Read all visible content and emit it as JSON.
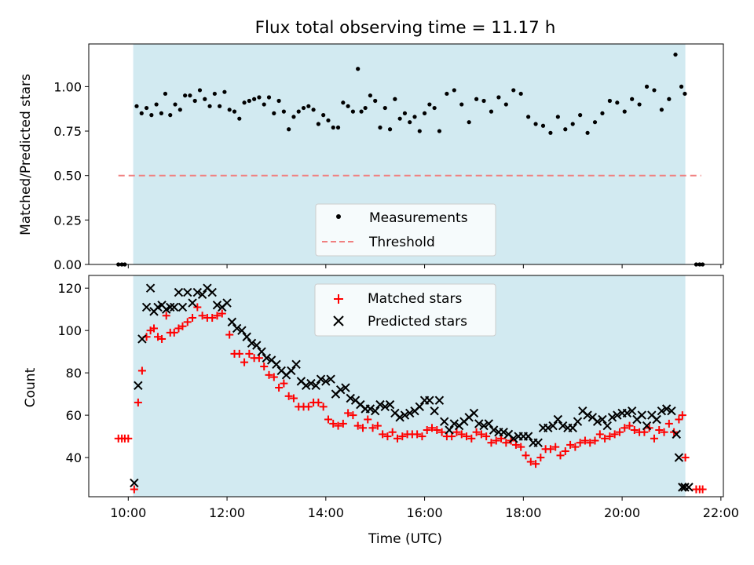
{
  "title": "Flux total observing time = 11.17 h",
  "chart_data": [
    {
      "type": "scatter",
      "ylabel": "Matched/Predicted stars",
      "xlabel": "",
      "ylim": [
        0,
        1.24
      ],
      "yticks": [
        0.0,
        0.25,
        0.5,
        0.75,
        1.0
      ],
      "ytick_labels": [
        "0.00",
        "0.25",
        "0.50",
        "0.75",
        "1.00"
      ],
      "xlim": [
        9.2,
        22.05
      ],
      "observing_span": [
        10.1,
        21.28
      ],
      "observing_span_color": "#add8e6",
      "legend_position": "bottom-center",
      "series": [
        {
          "name": "Measurements",
          "marker": "dot",
          "color": "#000000",
          "x": [
            9.8,
            9.87,
            9.93,
            10.17,
            10.27,
            10.37,
            10.47,
            10.57,
            10.67,
            10.75,
            10.85,
            10.95,
            11.05,
            11.15,
            11.25,
            11.35,
            11.45,
            11.55,
            11.65,
            11.75,
            11.85,
            11.95,
            12.05,
            12.15,
            12.25,
            12.35,
            12.45,
            12.55,
            12.65,
            12.75,
            12.85,
            12.95,
            13.05,
            13.15,
            13.25,
            13.35,
            13.45,
            13.55,
            13.65,
            13.75,
            13.85,
            13.95,
            14.05,
            14.15,
            14.25,
            14.35,
            14.45,
            14.55,
            14.65,
            14.72,
            14.8,
            14.9,
            15.0,
            15.1,
            15.2,
            15.3,
            15.4,
            15.5,
            15.6,
            15.7,
            15.8,
            15.9,
            16.0,
            16.1,
            16.2,
            16.3,
            16.45,
            16.6,
            16.75,
            16.9,
            17.05,
            17.2,
            17.35,
            17.5,
            17.65,
            17.8,
            17.95,
            18.1,
            18.25,
            18.4,
            18.55,
            18.7,
            18.85,
            19.0,
            19.15,
            19.3,
            19.45,
            19.6,
            19.75,
            19.9,
            20.05,
            20.2,
            20.35,
            20.5,
            20.65,
            20.8,
            20.95,
            21.08,
            21.2,
            21.27,
            21.5,
            21.57,
            21.63
          ],
          "y": [
            0.0,
            0.0,
            0.0,
            0.89,
            0.85,
            0.88,
            0.84,
            0.9,
            0.85,
            0.96,
            0.84,
            0.9,
            0.87,
            0.95,
            0.95,
            0.92,
            0.98,
            0.93,
            0.89,
            0.96,
            0.89,
            0.97,
            0.87,
            0.86,
            0.82,
            0.91,
            0.92,
            0.93,
            0.94,
            0.9,
            0.94,
            0.85,
            0.92,
            0.86,
            0.76,
            0.83,
            0.86,
            0.88,
            0.89,
            0.87,
            0.79,
            0.84,
            0.81,
            0.77,
            0.77,
            0.91,
            0.89,
            0.86,
            1.1,
            0.86,
            0.88,
            0.95,
            0.92,
            0.77,
            0.88,
            0.76,
            0.93,
            0.82,
            0.85,
            0.8,
            0.83,
            0.75,
            0.85,
            0.9,
            0.88,
            0.75,
            0.96,
            0.98,
            0.9,
            0.8,
            0.93,
            0.92,
            0.86,
            0.94,
            0.9,
            0.98,
            0.96,
            0.83,
            0.79,
            0.78,
            0.74,
            0.83,
            0.76,
            0.79,
            0.84,
            0.74,
            0.8,
            0.85,
            0.92,
            0.91,
            0.86,
            0.93,
            0.9,
            1.0,
            0.98,
            0.87,
            0.93,
            1.18,
            1.0,
            0.96,
            0.0,
            0.0,
            0.0
          ]
        },
        {
          "name": "Threshold",
          "marker": "dashed-line",
          "color": "#f08080",
          "x": [
            9.8,
            21.6
          ],
          "y": [
            0.5,
            0.5
          ]
        }
      ]
    },
    {
      "type": "scatter",
      "ylabel": "Count",
      "xlabel": "Time (UTC)",
      "ylim": [
        21.5,
        126
      ],
      "yticks": [
        40,
        60,
        80,
        100,
        120
      ],
      "ytick_labels": [
        "40",
        "60",
        "80",
        "100",
        "120"
      ],
      "xlim": [
        9.2,
        22.05
      ],
      "xticks": [
        10,
        12,
        14,
        16,
        18,
        20,
        22
      ],
      "xtick_labels": [
        "10:00",
        "12:00",
        "14:00",
        "16:00",
        "18:00",
        "20:00",
        "22:00"
      ],
      "observing_span": [
        10.1,
        21.28
      ],
      "observing_span_color": "#add8e6",
      "legend_position": "top-center",
      "series": [
        {
          "name": "Matched stars",
          "marker": "plus",
          "color": "#ff0000",
          "x": [
            9.8,
            9.87,
            9.93,
            10.0,
            10.12,
            10.2,
            10.28,
            10.37,
            10.45,
            10.52,
            10.6,
            10.68,
            10.77,
            10.85,
            10.93,
            11.02,
            11.1,
            11.2,
            11.3,
            11.4,
            11.5,
            11.6,
            11.7,
            11.8,
            11.9,
            12.05,
            12.15,
            12.25,
            12.35,
            12.45,
            12.55,
            12.65,
            12.75,
            12.85,
            12.95,
            13.05,
            13.15,
            13.25,
            13.35,
            13.45,
            13.55,
            13.65,
            13.75,
            13.85,
            13.95,
            14.05,
            14.15,
            14.25,
            14.35,
            14.45,
            14.55,
            14.65,
            14.75,
            14.85,
            14.95,
            15.05,
            15.15,
            15.25,
            15.35,
            15.45,
            15.55,
            15.65,
            15.75,
            15.85,
            15.95,
            16.05,
            16.15,
            16.25,
            16.35,
            16.45,
            16.55,
            16.65,
            16.75,
            16.85,
            16.95,
            17.05,
            17.15,
            17.25,
            17.35,
            17.45,
            17.55,
            17.65,
            17.75,
            17.85,
            17.95,
            18.05,
            18.15,
            18.25,
            18.35,
            18.45,
            18.55,
            18.65,
            18.75,
            18.85,
            18.95,
            19.05,
            19.15,
            19.25,
            19.35,
            19.45,
            19.55,
            19.65,
            19.75,
            19.85,
            19.95,
            20.05,
            20.15,
            20.25,
            20.35,
            20.45,
            20.55,
            20.65,
            20.75,
            20.85,
            20.95,
            21.05,
            21.15,
            21.22,
            21.28,
            21.5,
            21.57,
            21.63
          ],
          "y": [
            49,
            49,
            49,
            49,
            25,
            66,
            81,
            97,
            100,
            101,
            97,
            96,
            107,
            99,
            99,
            101,
            102,
            104,
            106,
            111,
            107,
            106,
            106,
            107,
            108,
            98,
            89,
            89,
            85,
            89,
            87,
            87,
            83,
            79,
            78,
            73,
            75,
            69,
            68,
            64,
            64,
            64,
            66,
            66,
            64,
            58,
            56,
            55,
            56,
            61,
            60,
            55,
            54,
            58,
            54,
            55,
            51,
            50,
            52,
            49,
            50,
            51,
            51,
            51,
            50,
            53,
            54,
            53,
            52,
            50,
            50,
            52,
            51,
            50,
            49,
            52,
            51,
            50,
            47,
            48,
            49,
            47,
            48,
            46,
            45,
            41,
            38,
            37,
            40,
            44,
            44,
            45,
            41,
            43,
            46,
            45,
            47,
            48,
            47,
            48,
            51,
            49,
            50,
            51,
            52,
            54,
            55,
            53,
            52,
            52,
            54,
            49,
            53,
            52,
            56,
            52,
            58,
            60,
            40,
            25,
            25,
            25
          ]
        },
        {
          "name": "Predicted stars",
          "marker": "x",
          "color": "#000000",
          "x": [
            10.12,
            10.2,
            10.28,
            10.37,
            10.45,
            10.52,
            10.6,
            10.68,
            10.77,
            10.85,
            10.93,
            11.02,
            11.1,
            11.2,
            11.3,
            11.4,
            11.5,
            11.6,
            11.7,
            11.8,
            11.9,
            12.0,
            12.1,
            12.2,
            12.3,
            12.4,
            12.5,
            12.6,
            12.7,
            12.8,
            12.9,
            13.0,
            13.1,
            13.2,
            13.3,
            13.4,
            13.5,
            13.6,
            13.7,
            13.8,
            13.9,
            14.0,
            14.1,
            14.2,
            14.3,
            14.4,
            14.5,
            14.6,
            14.7,
            14.8,
            14.9,
            15.0,
            15.1,
            15.2,
            15.3,
            15.4,
            15.5,
            15.6,
            15.7,
            15.8,
            15.9,
            16.0,
            16.1,
            16.2,
            16.3,
            16.4,
            16.5,
            16.6,
            16.7,
            16.8,
            16.9,
            17.0,
            17.1,
            17.2,
            17.3,
            17.4,
            17.5,
            17.6,
            17.7,
            17.8,
            17.9,
            18.0,
            18.1,
            18.2,
            18.3,
            18.4,
            18.5,
            18.6,
            18.7,
            18.8,
            18.9,
            19.0,
            19.1,
            19.2,
            19.3,
            19.4,
            19.5,
            19.6,
            19.7,
            19.8,
            19.9,
            20.0,
            20.1,
            20.2,
            20.3,
            20.4,
            20.5,
            20.6,
            20.7,
            20.8,
            20.9,
            21.0,
            21.1,
            21.15,
            21.22,
            21.27,
            21.35
          ],
          "y": [
            28,
            74,
            96,
            111,
            120,
            109,
            111,
            112,
            110,
            111,
            111,
            118,
            111,
            118,
            113,
            118,
            117,
            120,
            118,
            112,
            111,
            113,
            104,
            101,
            100,
            97,
            94,
            93,
            90,
            87,
            86,
            84,
            81,
            79,
            81,
            84,
            76,
            74,
            75,
            74,
            77,
            76,
            77,
            70,
            72,
            73,
            68,
            67,
            65,
            63,
            63,
            62,
            65,
            64,
            65,
            61,
            59,
            60,
            61,
            62,
            64,
            67,
            67,
            62,
            67,
            57,
            53,
            56,
            55,
            57,
            59,
            61,
            56,
            55,
            56,
            53,
            52,
            52,
            51,
            49,
            50,
            50,
            50,
            47,
            47,
            54,
            54,
            55,
            58,
            55,
            54,
            54,
            57,
            62,
            60,
            59,
            57,
            58,
            55,
            59,
            60,
            61,
            61,
            62,
            58,
            60,
            55,
            60,
            58,
            62,
            63,
            62,
            51,
            40,
            26,
            26,
            26
          ]
        }
      ]
    }
  ]
}
